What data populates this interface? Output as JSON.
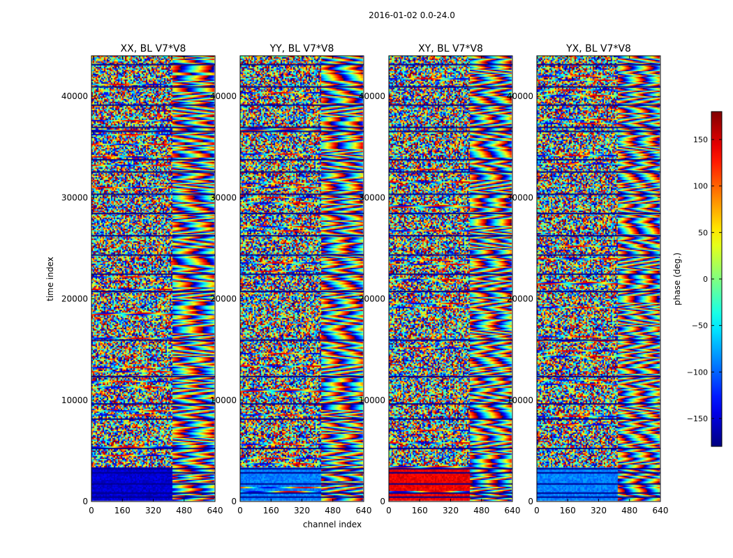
{
  "suptitle": "2016-01-02 0.0-24.0",
  "chart_data": {
    "type": "heatmap",
    "xlabel": "channel index",
    "ylabel": "time index",
    "xlim": [
      0,
      640
    ],
    "ylim": [
      0,
      44000
    ],
    "x_ticks": [
      "0",
      "160",
      "320",
      "480",
      "640"
    ],
    "y_ticks": [
      "0",
      "10000",
      "20000",
      "30000",
      "40000"
    ],
    "y_tick_values": [
      0,
      10000,
      20000,
      30000,
      40000
    ],
    "panels": [
      {
        "title": "XX, BL V7*V8"
      },
      {
        "title": "YY, BL V7*V8"
      },
      {
        "title": "XY, BL V7*V8"
      },
      {
        "title": "YX, BL V7*V8"
      }
    ],
    "colorbar": {
      "label": "phase (deg.)",
      "range": [
        -180,
        180
      ],
      "colormap": "jet",
      "ticks": [
        "150",
        "100",
        "50",
        "0",
        "−50",
        "−100",
        "−150"
      ],
      "tick_values": [
        150,
        100,
        50,
        0,
        -50,
        -100,
        -150
      ]
    }
  }
}
